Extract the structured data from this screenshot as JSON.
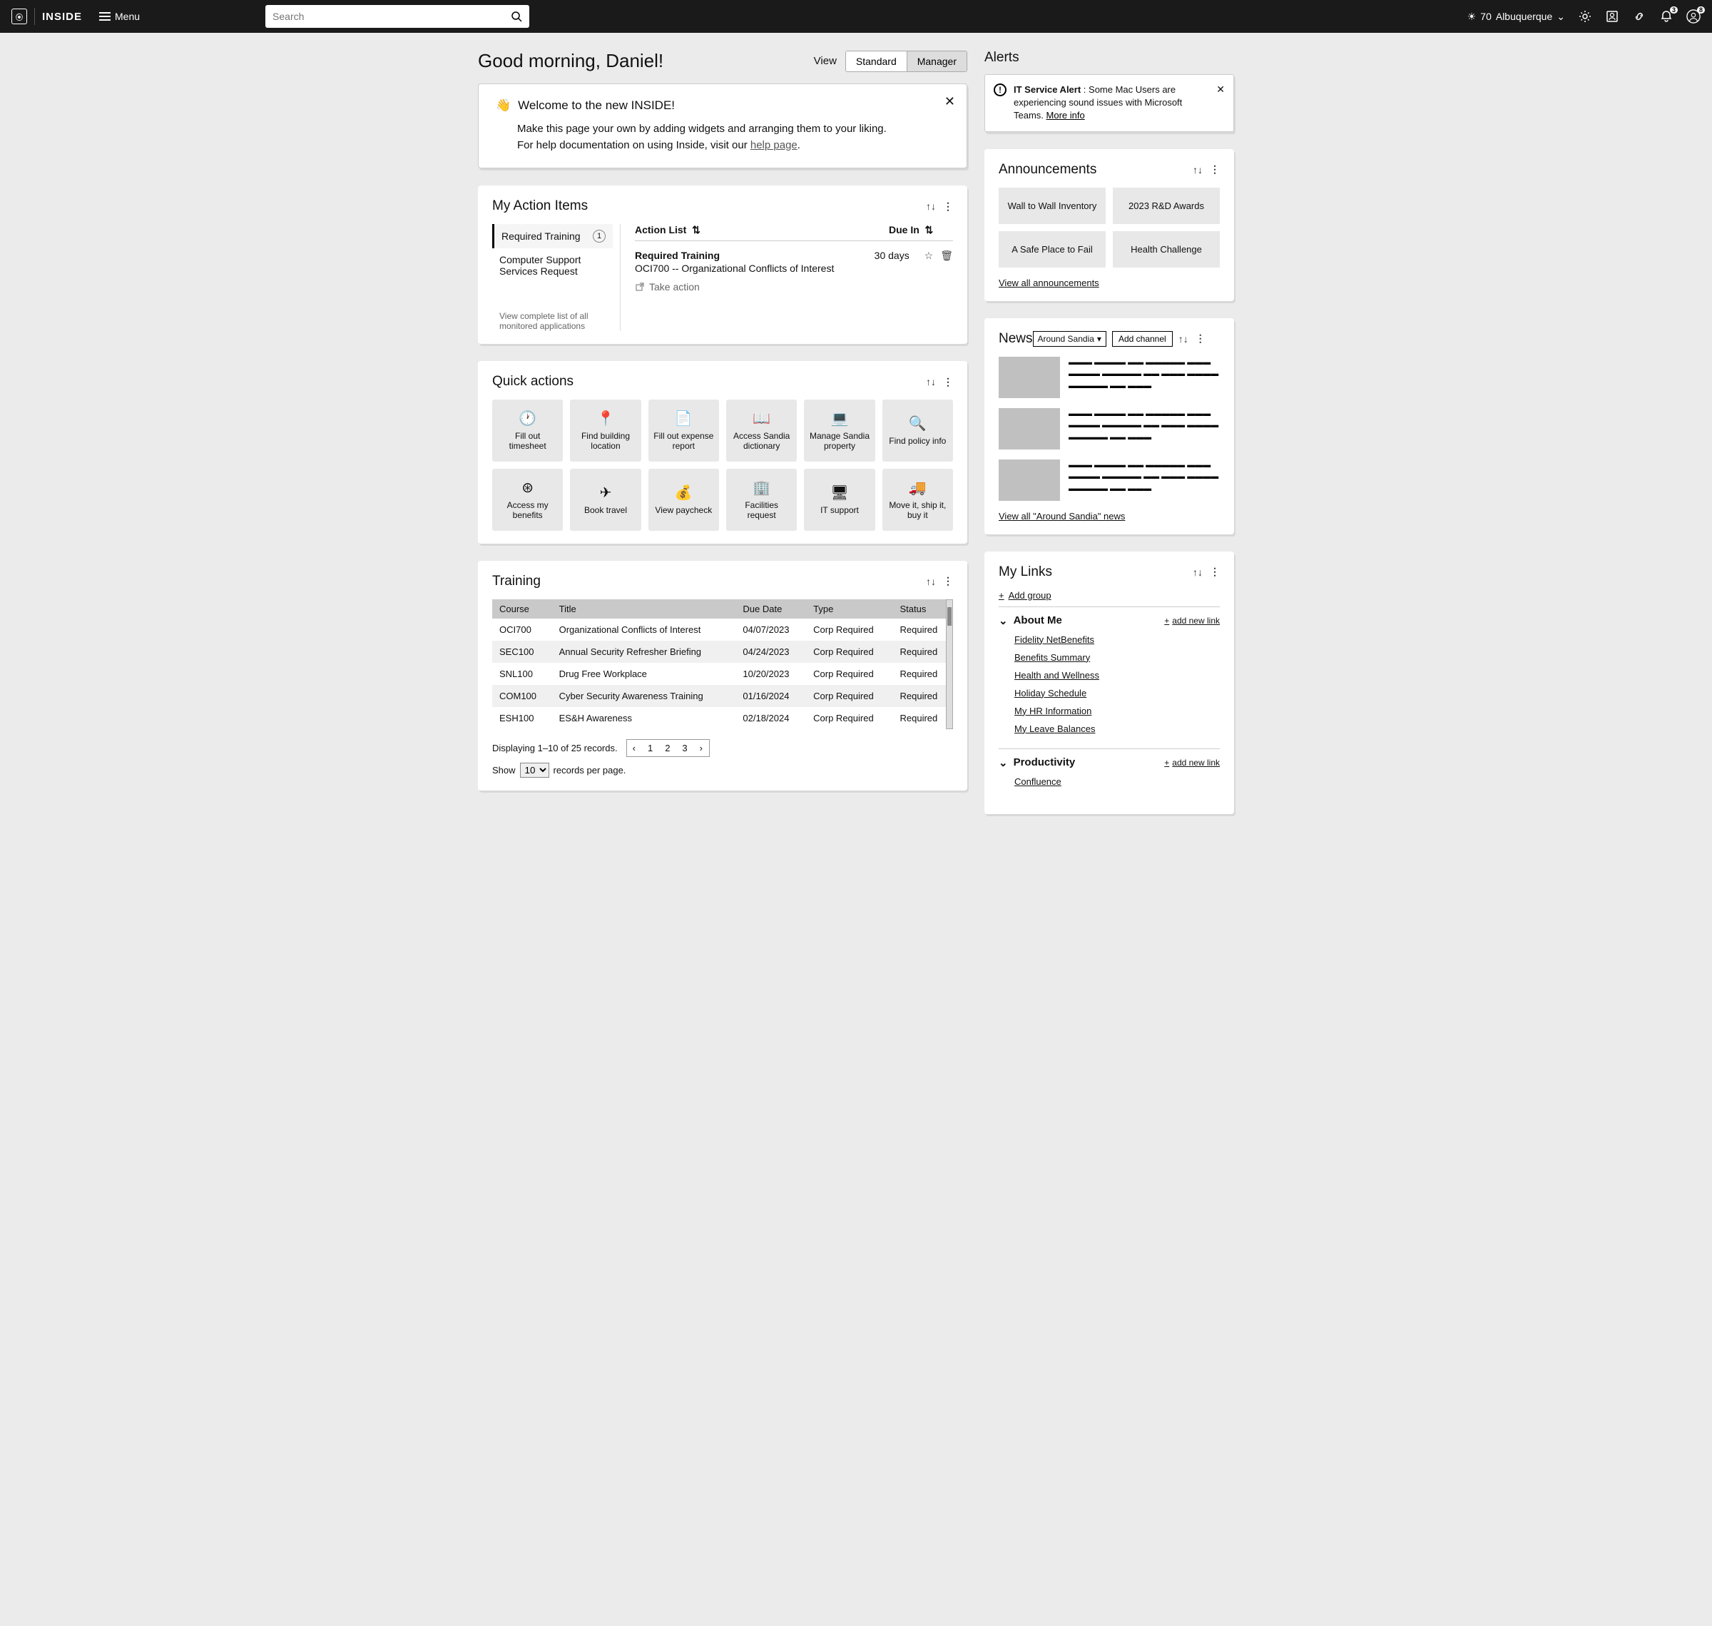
{
  "brand": "INSIDE",
  "menu_label": "Menu",
  "search_placeholder": "Search",
  "weather": {
    "temp": "70",
    "city": "Albuquerque"
  },
  "notif_badge": "3",
  "profile_badge": "8",
  "greeting": "Good morning, Daniel!",
  "view_label": "View",
  "view_tabs": {
    "standard": "Standard",
    "manager": "Manager"
  },
  "welcome": {
    "title": "Welcome to the new INSIDE!",
    "line1": "Make this page your own by adding widgets and arranging them to your liking.",
    "line2a": "For help documentation on using Inside, visit our ",
    "line2b": "help page",
    "line2c": "."
  },
  "action_items": {
    "title": "My Action Items",
    "tab1": "Required Training",
    "tab1_count": "1",
    "tab2": "Computer Support Services Request",
    "footer": "View complete list of all monitored applications",
    "col_action": "Action List",
    "col_due": "Due In",
    "row_title": "Required Training",
    "row_sub": "OCI700 -- Organizational Conflicts of Interest",
    "row_due": "30 days",
    "take_action": "Take action"
  },
  "quick_actions": {
    "title": "Quick actions",
    "tiles": [
      "Fill out timesheet",
      "Find building location",
      "Fill out expense report",
      "Access Sandia dictionary",
      "Manage Sandia property",
      "Find policy info",
      "Access my benefits",
      "Book travel",
      "View paycheck",
      "Facilities request",
      "IT support",
      "Move it, ship it, buy it"
    ]
  },
  "training": {
    "title": "Training",
    "cols": [
      "Course",
      "Title",
      "Due Date",
      "Type",
      "Status"
    ],
    "rows": [
      [
        "OCI700",
        "Organizational Conflicts of Interest",
        "04/07/2023",
        "Corp Required",
        "Required"
      ],
      [
        "SEC100",
        "Annual Security Refresher Briefing",
        "04/24/2023",
        "Corp Required",
        "Required"
      ],
      [
        "SNL100",
        "Drug Free Workplace",
        "10/20/2023",
        "Corp Required",
        "Required"
      ],
      [
        "COM100",
        "Cyber Security Awareness Training",
        "01/16/2024",
        "Corp Required",
        "Required"
      ],
      [
        "ESH100",
        "ES&H Awareness",
        "02/18/2024",
        "Corp Required",
        "Required"
      ]
    ],
    "paging_text": "Displaying 1–10 of 25 records.",
    "pages": [
      "1",
      "2",
      "3"
    ],
    "show_label_a": "Show",
    "show_value": "10",
    "show_label_b": "records per page."
  },
  "alerts": {
    "title": "Alerts",
    "heading": "IT Service Alert",
    "body": " : Some Mac Users are experiencing sound issues with Microsoft Teams. ",
    "more": "More info"
  },
  "announcements": {
    "title": "Announcements",
    "tiles": [
      "Wall to Wall Inventory",
      "2023 R&D Awards",
      "A Safe Place to Fail",
      "Health Challenge"
    ],
    "view_all": "View all announcements"
  },
  "news": {
    "title": "News",
    "channel": "Around Sandia",
    "add_channel": "Add channel",
    "view_all": "View all \"Around Sandia\" news"
  },
  "links": {
    "title": "My Links",
    "add_group": "Add group",
    "groups": [
      {
        "name": "About Me",
        "add": "add new link",
        "items": [
          "Fidelity NetBenefits",
          "Benefits Summary",
          "Health and Wellness",
          "Holiday Schedule",
          "My HR Information",
          "My Leave Balances"
        ]
      },
      {
        "name": "Productivity",
        "add": "add new link",
        "items": [
          "Confluence"
        ]
      }
    ]
  }
}
